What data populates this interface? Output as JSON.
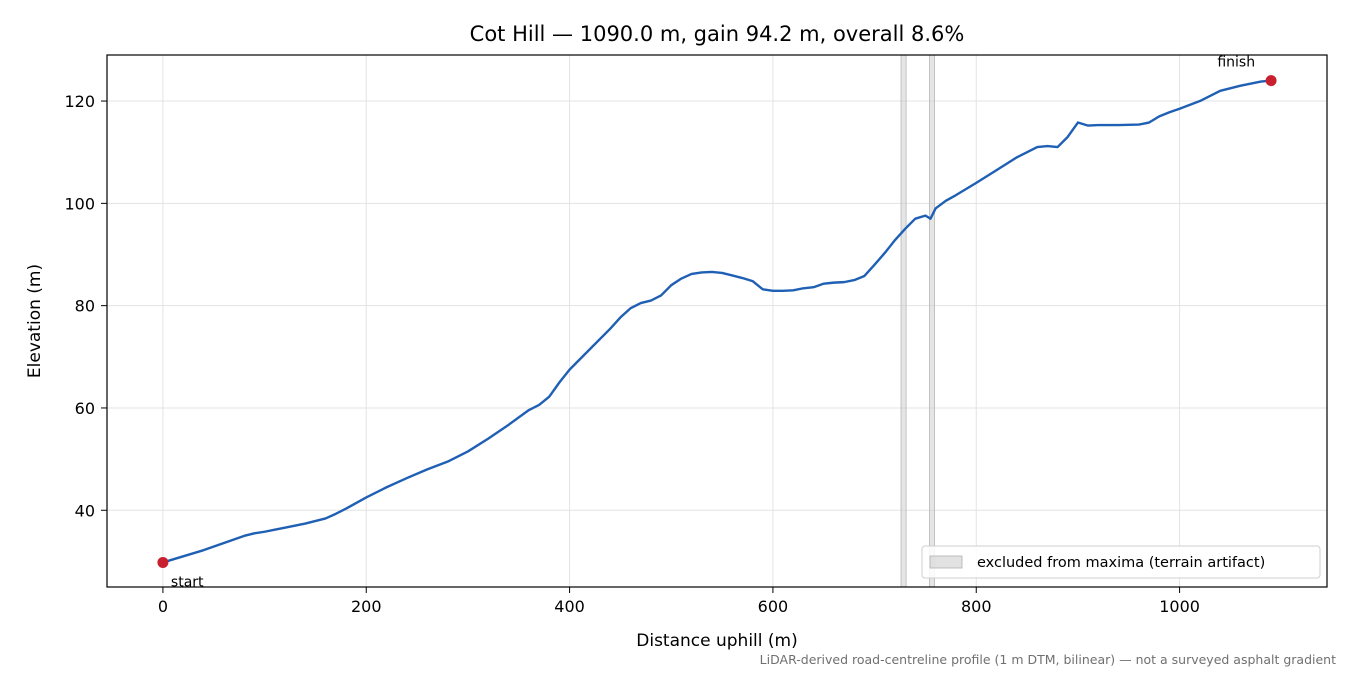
{
  "chart_data": {
    "type": "line",
    "title": "Cot Hill — 1090.0 m, gain 94.2 m, overall 8.6%",
    "xlabel": "Distance uphill (m)",
    "ylabel": "Elevation (m)",
    "xlim": [
      -55,
      1145
    ],
    "ylim": [
      25,
      129
    ],
    "xticks": [
      0,
      200,
      400,
      600,
      800,
      1000
    ],
    "yticks": [
      40,
      60,
      80,
      100,
      120
    ],
    "grid": true,
    "series": [
      {
        "color": "#1f5fb4",
        "x": [
          0,
          20,
          40,
          60,
          80,
          90,
          100,
          110,
          120,
          140,
          160,
          170,
          180,
          200,
          220,
          240,
          260,
          280,
          300,
          320,
          340,
          360,
          370,
          380,
          390,
          400,
          420,
          440,
          450,
          460,
          470,
          480,
          490,
          500,
          510,
          520,
          530,
          540,
          550,
          560,
          570,
          580,
          590,
          600,
          610,
          620,
          630,
          640,
          650,
          660,
          670,
          680,
          690,
          700,
          710,
          720,
          730,
          740,
          750,
          755,
          760,
          770,
          780,
          800,
          820,
          840,
          860,
          870,
          880,
          890,
          900,
          910,
          920,
          940,
          960,
          970,
          980,
          990,
          1000,
          1020,
          1040,
          1060,
          1080,
          1090
        ],
        "y": [
          29.8,
          31.0,
          32.2,
          33.6,
          35.0,
          35.5,
          35.8,
          36.2,
          36.6,
          37.4,
          38.4,
          39.3,
          40.3,
          42.5,
          44.5,
          46.3,
          48.0,
          49.5,
          51.5,
          54.0,
          56.7,
          59.6,
          60.6,
          62.2,
          65.0,
          67.5,
          71.5,
          75.5,
          77.7,
          79.5,
          80.5,
          81.0,
          82.0,
          84.0,
          85.3,
          86.2,
          86.5,
          86.6,
          86.4,
          85.9,
          85.4,
          84.8,
          83.2,
          82.9,
          82.9,
          83.0,
          83.4,
          83.6,
          84.3,
          84.5,
          84.6,
          85.0,
          85.8,
          88.0,
          90.3,
          92.8,
          95.0,
          97.0,
          97.6,
          97.0,
          99.0,
          100.5,
          101.6,
          104.0,
          106.5,
          109.0,
          111.0,
          111.2,
          111.0,
          113.0,
          115.8,
          115.2,
          115.3,
          115.3,
          115.4,
          115.8,
          117.0,
          117.8,
          118.5,
          120.0,
          122.0,
          123.0,
          123.8,
          124.0
        ]
      }
    ],
    "excluded_bands": [
      [
        726,
        731
      ],
      [
        754,
        759
      ]
    ],
    "markers": [
      {
        "label": "start",
        "x": 0,
        "y": 29.8,
        "color": "#c8202e"
      },
      {
        "label": "finish",
        "x": 1090,
        "y": 124.0,
        "color": "#c8202e"
      }
    ],
    "legend": {
      "placement": "lower-right",
      "label": "excluded from maxima (terrain artifact)"
    },
    "footnote": "LiDAR-derived road-centreline profile (1 m DTM, bilinear) — not a surveyed asphalt gradient"
  }
}
